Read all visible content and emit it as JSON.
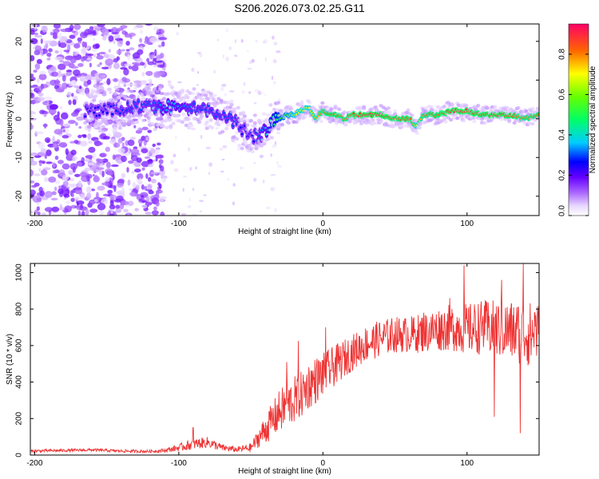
{
  "title": "S206.2026.073.02.25.G11",
  "chart_data": [
    {
      "type": "heatmap",
      "title": "S206.2026.073.02.25.G11",
      "xlabel": "Height of straight line (km)",
      "ylabel": "Frequency (Hz)",
      "xlim": [
        -203,
        150
      ],
      "ylim": [
        -25,
        24.5
      ],
      "xticks": [
        -200,
        -100,
        0,
        100
      ],
      "xtick_labels": [
        "-200",
        "-100",
        "0",
        "100"
      ],
      "yticks": [
        20,
        10,
        0,
        -10,
        -20
      ],
      "ytick_labels": [
        "20",
        "10",
        "0",
        "-10",
        "-20"
      ],
      "colorbar": {
        "label": "Normalized spectral amplitude",
        "range": [
          0,
          0.95
        ],
        "ticks": [
          0.0,
          0.2,
          0.4,
          0.6,
          0.8
        ],
        "tick_labels": [
          "0.0",
          "0.2",
          "0.4",
          "0.6",
          "0.8"
        ]
      },
      "ridge": {
        "x": [
          -160,
          -130,
          -120,
          -110,
          -100,
          -90,
          -80,
          -70,
          -60,
          -55,
          -50,
          -45,
          -40,
          -35,
          -30,
          -25,
          -20,
          -15,
          -10,
          -5,
          0,
          5,
          10,
          15,
          20,
          30,
          40,
          50,
          60,
          65,
          70,
          80,
          90,
          100,
          110,
          120,
          130,
          140,
          150
        ],
        "freq": [
          2,
          3,
          3,
          3,
          3,
          3,
          2,
          1,
          -1,
          -3,
          -4,
          -5,
          -3,
          -1,
          0,
          1,
          1,
          2,
          3,
          0,
          2,
          1,
          1,
          0,
          1,
          1,
          1,
          0,
          0,
          -2,
          1,
          1,
          2,
          2,
          1,
          1,
          1,
          0,
          1
        ],
        "amplitude": [
          0.25,
          0.3,
          0.3,
          0.35,
          0.35,
          0.3,
          0.3,
          0.3,
          0.3,
          0.25,
          0.25,
          0.3,
          0.35,
          0.45,
          0.55,
          0.6,
          0.65,
          0.7,
          0.7,
          0.75,
          0.8,
          0.85,
          0.85,
          0.8,
          0.85,
          0.9,
          0.9,
          0.85,
          0.85,
          0.7,
          0.8,
          0.85,
          0.9,
          0.9,
          0.85,
          0.9,
          0.85,
          0.8,
          0.8
        ]
      },
      "noise_region": [
        -203,
        -110
      ]
    },
    {
      "type": "line",
      "xlabel": "Height of straight line (km)",
      "ylabel": "SNR (10 * v/v)",
      "xlim": [
        -203,
        150
      ],
      "ylim": [
        0,
        1050
      ],
      "xticks": [
        -200,
        -100,
        0,
        100
      ],
      "xtick_labels": [
        "-200",
        "-100",
        "0",
        "100"
      ],
      "yticks": [
        0,
        200,
        400,
        600,
        800,
        1000
      ],
      "ytick_labels": [
        "0",
        "200",
        "400",
        "600",
        "800",
        "1000"
      ],
      "series": [
        {
          "name": "SNR",
          "color": "#ee3333",
          "x": [
            -203,
            -180,
            -160,
            -140,
            -120,
            -110,
            -100,
            -90,
            -80,
            -75,
            -70,
            -60,
            -50,
            -45,
            -40,
            -35,
            -30,
            -25,
            -20,
            -15,
            -10,
            -5,
            0,
            10,
            20,
            30,
            40,
            50,
            60,
            70,
            80,
            90,
            100,
            110,
            120,
            130,
            140,
            145,
            150
          ],
          "mean": [
            22,
            25,
            28,
            22,
            20,
            25,
            40,
            60,
            70,
            55,
            40,
            30,
            40,
            90,
            140,
            190,
            240,
            270,
            300,
            330,
            380,
            410,
            440,
            500,
            560,
            610,
            640,
            660,
            660,
            670,
            690,
            700,
            690,
            700,
            690,
            680,
            670,
            660,
            680
          ],
          "spread": [
            8,
            8,
            8,
            8,
            8,
            10,
            20,
            30,
            30,
            25,
            20,
            15,
            25,
            50,
            80,
            100,
            120,
            130,
            130,
            130,
            130,
            130,
            120,
            110,
            100,
            100,
            100,
            100,
            100,
            110,
            120,
            130,
            140,
            150,
            160,
            170,
            180,
            180,
            160
          ]
        }
      ],
      "spikes": [
        {
          "x": -90,
          "y": 150
        },
        {
          "x": -25,
          "y": 510
        },
        {
          "x": -17,
          "y": 625
        },
        {
          "x": 2,
          "y": 700
        },
        {
          "x": 70,
          "y": 780
        },
        {
          "x": 88,
          "y": 860
        },
        {
          "x": 98,
          "y": 1040
        },
        {
          "x": 112,
          "y": 820
        },
        {
          "x": 119,
          "y": 210
        },
        {
          "x": 124,
          "y": 960
        },
        {
          "x": 137,
          "y": 120
        },
        {
          "x": 139,
          "y": 1050
        },
        {
          "x": 143,
          "y": 500
        },
        {
          "x": 147,
          "y": 780
        }
      ]
    }
  ]
}
